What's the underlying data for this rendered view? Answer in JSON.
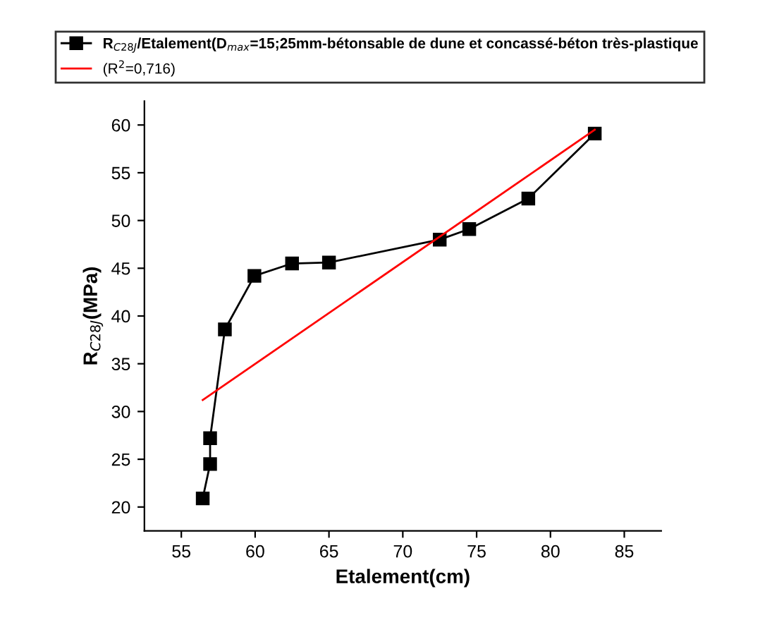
{
  "chart_data": {
    "type": "line",
    "xlabel": "Etalement(cm)",
    "ylabel": "R$_{C28J}$(MPa)",
    "xlim": [
      52.5,
      87.5
    ],
    "xticks": [
      55,
      60,
      65,
      70,
      75,
      80,
      85
    ],
    "ylim": [
      17.5,
      62.5
    ],
    "yticks": [
      20,
      25,
      30,
      35,
      40,
      45,
      50,
      55,
      60
    ],
    "legend": "top",
    "grid": false,
    "series": [
      {
        "name": "R$_{C28J}$/Etalement(D$_{max}$=15;25mm-bétonsable de dune et concassé-béton très-plastique",
        "color": "#000000",
        "marker": "square",
        "x": [
          56.45,
          56.95,
          56.95,
          57.95,
          59.95,
          62.5,
          65.0,
          72.5,
          74.5,
          78.5,
          83.0
        ],
        "values": [
          20.9,
          24.5,
          27.2,
          38.6,
          44.2,
          45.5,
          45.6,
          48.0,
          49.1,
          52.3,
          59.1
        ]
      },
      {
        "name": "(R$^{2}$=0,716)",
        "color": "#ff0000",
        "marker": "none",
        "x": [
          56.45,
          83.0
        ],
        "values": [
          31.2,
          59.5
        ]
      }
    ]
  }
}
